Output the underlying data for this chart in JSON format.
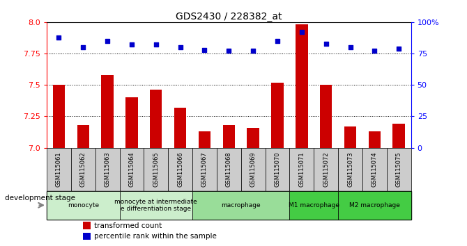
{
  "title": "GDS2430 / 228382_at",
  "samples": [
    "GSM115061",
    "GSM115062",
    "GSM115063",
    "GSM115064",
    "GSM115065",
    "GSM115066",
    "GSM115067",
    "GSM115068",
    "GSM115069",
    "GSM115070",
    "GSM115071",
    "GSM115072",
    "GSM115073",
    "GSM115074",
    "GSM115075"
  ],
  "transformed_count": [
    7.5,
    7.18,
    7.58,
    7.4,
    7.46,
    7.32,
    7.13,
    7.18,
    7.16,
    7.52,
    7.98,
    7.5,
    7.17,
    7.13,
    7.19
  ],
  "percentile_rank": [
    88,
    80,
    85,
    82,
    82,
    80,
    78,
    77,
    77,
    85,
    92,
    83,
    80,
    77,
    79
  ],
  "ylim_left": [
    7.0,
    8.0
  ],
  "ylim_right": [
    0,
    100
  ],
  "yticks_left": [
    7.0,
    7.25,
    7.5,
    7.75,
    8.0
  ],
  "yticks_right": [
    0,
    25,
    50,
    75,
    100
  ],
  "bar_color": "#cc0000",
  "dot_color": "#0000cc",
  "groups": [
    {
      "label": "monocyte",
      "start": 0,
      "end": 2,
      "color": "#cceecc"
    },
    {
      "label": "monocyte at intermediate\ne differentiation stage",
      "start": 3,
      "end": 5,
      "color": "#cceecc"
    },
    {
      "label": "macrophage",
      "start": 6,
      "end": 9,
      "color": "#99dd99"
    },
    {
      "label": "M1 macrophage",
      "start": 10,
      "end": 11,
      "color": "#44cc44"
    },
    {
      "label": "M2 macrophage",
      "start": 12,
      "end": 14,
      "color": "#44cc44"
    }
  ],
  "legend_bar_label": "transformed count",
  "legend_dot_label": "percentile rank within the sample",
  "dev_stage_label": "development stage",
  "sample_box_color": "#cccccc",
  "chart_bg": "#ffffff"
}
